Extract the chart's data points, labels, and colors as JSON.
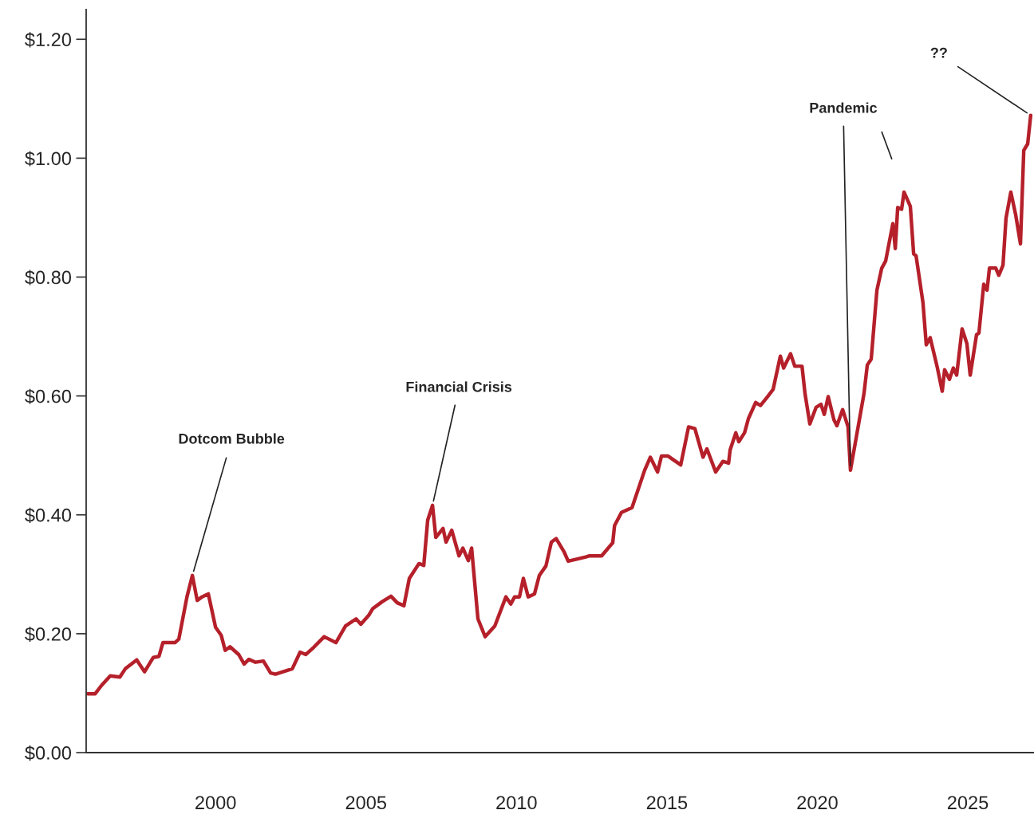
{
  "chart_data": {
    "type": "line",
    "x": [
      1995.75,
      1996.0,
      1996.21,
      1996.5,
      1996.82,
      1997.0,
      1997.38,
      1997.64,
      1997.93,
      1998.12,
      1998.25,
      1998.65,
      1998.78,
      1999.05,
      1999.23,
      1999.39,
      1999.55,
      1999.76,
      2000.0,
      2000.19,
      2000.32,
      2000.48,
      2000.77,
      2000.95,
      2001.11,
      2001.33,
      2001.59,
      2001.83,
      2001.99,
      2002.55,
      2002.81,
      2003.0,
      2003.26,
      2003.61,
      2004.0,
      2004.32,
      2004.67,
      2004.83,
      2005.09,
      2005.22,
      2005.54,
      2005.83,
      2006.04,
      2006.26,
      2006.44,
      2006.76,
      2006.92,
      2007.05,
      2007.21,
      2007.32,
      2007.56,
      2007.66,
      2007.85,
      2008.09,
      2008.22,
      2008.4,
      2008.51,
      2008.72,
      2008.96,
      2009.28,
      2009.65,
      2009.81,
      2009.94,
      2010.1,
      2010.23,
      2010.39,
      2010.6,
      2010.76,
      2010.98,
      2011.16,
      2011.32,
      2011.59,
      2011.72,
      2012.3,
      2012.43,
      2012.83,
      2013.2,
      2013.26,
      2013.49,
      2013.84,
      2014.26,
      2014.45,
      2014.69,
      2014.82,
      2015.03,
      2015.46,
      2015.72,
      2015.93,
      2016.2,
      2016.33,
      2016.62,
      2016.86,
      2017.05,
      2017.1,
      2017.29,
      2017.39,
      2017.58,
      2017.71,
      2017.95,
      2018.11,
      2018.35,
      2018.53,
      2018.77,
      2018.88,
      2019.11,
      2019.25,
      2019.49,
      2019.59,
      2019.75,
      2019.96,
      2020.12,
      2020.23,
      2020.36,
      2020.55,
      2020.65,
      2020.84,
      2021.02,
      2021.1,
      2021.55,
      2021.66,
      2021.79,
      2021.98,
      2022.14,
      2022.27,
      2022.51,
      2022.59,
      2022.67,
      2022.8,
      2022.88,
      2023.09,
      2023.2,
      2023.28,
      2023.51,
      2023.62,
      2023.75,
      2023.99,
      2024.15,
      2024.23,
      2024.39,
      2024.52,
      2024.63,
      2024.81,
      2024.97,
      2025.08,
      2025.29,
      2025.37,
      2025.53,
      2025.64,
      2025.72,
      2025.93,
      2026.03,
      2026.17,
      2026.27,
      2026.43,
      2026.59,
      2026.75,
      2026.86,
      2026.99,
      2027.09
    ],
    "values": [
      0.099,
      0.099,
      0.113,
      0.129,
      0.127,
      0.141,
      0.156,
      0.136,
      0.16,
      0.162,
      0.185,
      0.185,
      0.191,
      0.262,
      0.298,
      0.256,
      0.262,
      0.267,
      0.211,
      0.197,
      0.172,
      0.178,
      0.165,
      0.149,
      0.157,
      0.152,
      0.154,
      0.134,
      0.132,
      0.141,
      0.169,
      0.165,
      0.177,
      0.195,
      0.185,
      0.213,
      0.225,
      0.216,
      0.231,
      0.242,
      0.254,
      0.263,
      0.252,
      0.247,
      0.293,
      0.318,
      0.315,
      0.391,
      0.416,
      0.362,
      0.377,
      0.354,
      0.374,
      0.331,
      0.344,
      0.323,
      0.344,
      0.225,
      0.195,
      0.213,
      0.262,
      0.25,
      0.262,
      0.262,
      0.293,
      0.262,
      0.267,
      0.298,
      0.314,
      0.354,
      0.36,
      0.337,
      0.322,
      0.329,
      0.331,
      0.331,
      0.353,
      0.382,
      0.404,
      0.412,
      0.475,
      0.497,
      0.472,
      0.499,
      0.499,
      0.484,
      0.548,
      0.545,
      0.497,
      0.511,
      0.472,
      0.49,
      0.487,
      0.509,
      0.538,
      0.523,
      0.538,
      0.562,
      0.589,
      0.584,
      0.599,
      0.611,
      0.667,
      0.647,
      0.671,
      0.65,
      0.65,
      0.604,
      0.553,
      0.581,
      0.586,
      0.569,
      0.599,
      0.56,
      0.55,
      0.577,
      0.548,
      0.475,
      0.604,
      0.652,
      0.662,
      0.778,
      0.815,
      0.827,
      0.89,
      0.848,
      0.917,
      0.914,
      0.943,
      0.919,
      0.839,
      0.836,
      0.757,
      0.686,
      0.698,
      0.647,
      0.608,
      0.644,
      0.628,
      0.647,
      0.635,
      0.713,
      0.688,
      0.635,
      0.703,
      0.706,
      0.788,
      0.778,
      0.815,
      0.815,
      0.803,
      0.82,
      0.899,
      0.943,
      0.905,
      0.856,
      1.013,
      1.024,
      1.072
    ],
    "color": "#b5202a",
    "line_style": "solid",
    "marker": "none",
    "xlim": [
      1995.7,
      2027.2
    ],
    "ylim": [
      0,
      1.25
    ],
    "xticks": [
      2000,
      2005,
      2010,
      2015,
      2020,
      2025
    ],
    "yticks": [
      {
        "value": 0,
        "label": "$0.00"
      },
      {
        "value": 0.2,
        "label": "$0.20"
      },
      {
        "value": 0.4,
        "label": "$0.40"
      },
      {
        "value": 0.6,
        "label": "$0.60"
      },
      {
        "value": 0.8,
        "label": "$0.80"
      },
      {
        "value": 1.0,
        "label": "$1.00"
      },
      {
        "value": 1.2,
        "label": "$1.20"
      }
    ],
    "annotations": [
      {
        "text": "Dotcom Bubble",
        "x": 1999.23,
        "y": 0.298
      },
      {
        "text": "Financial Crisis",
        "x": 2007.21,
        "y": 0.416
      },
      {
        "text": "Pandemic",
        "x": 2021.1,
        "y": 0.475
      },
      {
        "text": "??",
        "x": 2027.09,
        "y": 1.072
      }
    ],
    "grid": false,
    "legend": false
  }
}
